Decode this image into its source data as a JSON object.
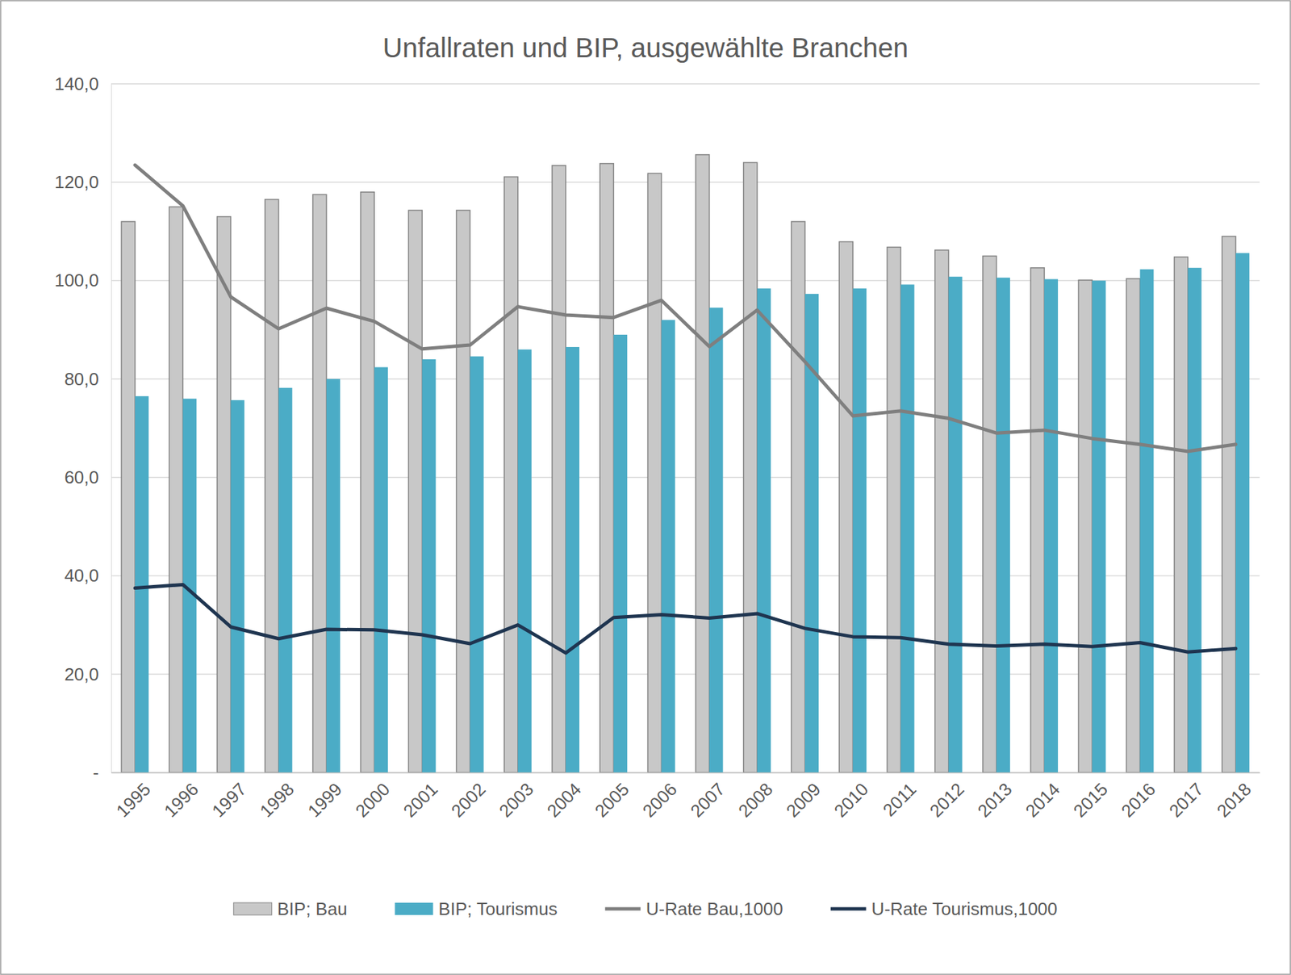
{
  "chart_data": {
    "type": "bar",
    "title": "Unfallraten und BIP, ausgewählte Branchen",
    "categories": [
      "1995",
      "1996",
      "1997",
      "1998",
      "1999",
      "2000",
      "2001",
      "2002",
      "2003",
      "2004",
      "2005",
      "2006",
      "2007",
      "2008",
      "2009",
      "2010",
      "2011",
      "2012",
      "2013",
      "2014",
      "2015",
      "2016",
      "2017",
      "2018"
    ],
    "series": [
      {
        "name": "BIP; Bau",
        "type": "bar",
        "color": "#c8c8c8",
        "values": [
          112.0,
          115.0,
          113.0,
          116.5,
          117.5,
          118.0,
          114.3,
          114.3,
          121.1,
          123.4,
          123.8,
          121.8,
          125.6,
          124.0,
          112.0,
          107.9,
          106.8,
          106.2,
          105.0,
          102.6,
          100.1,
          100.4,
          104.8,
          109.0
        ]
      },
      {
        "name": "BIP; Tourismus",
        "type": "bar",
        "color": "#4bacc6",
        "values": [
          76.5,
          76.0,
          75.7,
          78.2,
          80.0,
          82.4,
          84.0,
          84.6,
          86.0,
          86.5,
          89.0,
          92.0,
          94.5,
          98.4,
          97.3,
          98.4,
          99.2,
          100.8,
          100.6,
          100.3,
          100.0,
          102.3,
          102.6,
          105.6
        ]
      },
      {
        "name": "U-Rate Bau,1000",
        "type": "line",
        "color": "#7f7f7f",
        "values": [
          123.5,
          115.2,
          96.7,
          90.2,
          94.4,
          91.7,
          86.1,
          86.9,
          94.7,
          93.0,
          92.5,
          96.0,
          86.6,
          94.0,
          83.5,
          72.5,
          73.5,
          72.0,
          69.0,
          69.6,
          67.9,
          66.7,
          65.3,
          66.7
        ]
      },
      {
        "name": "U-Rate Tourismus,1000",
        "type": "line",
        "color": "#1f3550",
        "values": [
          37.5,
          38.2,
          29.6,
          27.2,
          29.1,
          29.0,
          28.0,
          26.2,
          30.0,
          24.3,
          31.5,
          32.1,
          31.4,
          32.3,
          29.3,
          27.6,
          27.4,
          26.1,
          25.7,
          26.1,
          25.6,
          26.4,
          24.5,
          25.2
        ]
      }
    ],
    "ylim": [
      0,
      140
    ],
    "yticks": [
      {
        "value": 0,
        "label": "-"
      },
      {
        "value": 20,
        "label": "20,0"
      },
      {
        "value": 40,
        "label": "40,0"
      },
      {
        "value": 60,
        "label": "60,0"
      },
      {
        "value": 80,
        "label": "80,0"
      },
      {
        "value": 100,
        "label": "100,0"
      },
      {
        "value": 120,
        "label": "120,0"
      },
      {
        "value": 140,
        "label": "140,0"
      }
    ],
    "grid": true,
    "legend": "bottom"
  }
}
